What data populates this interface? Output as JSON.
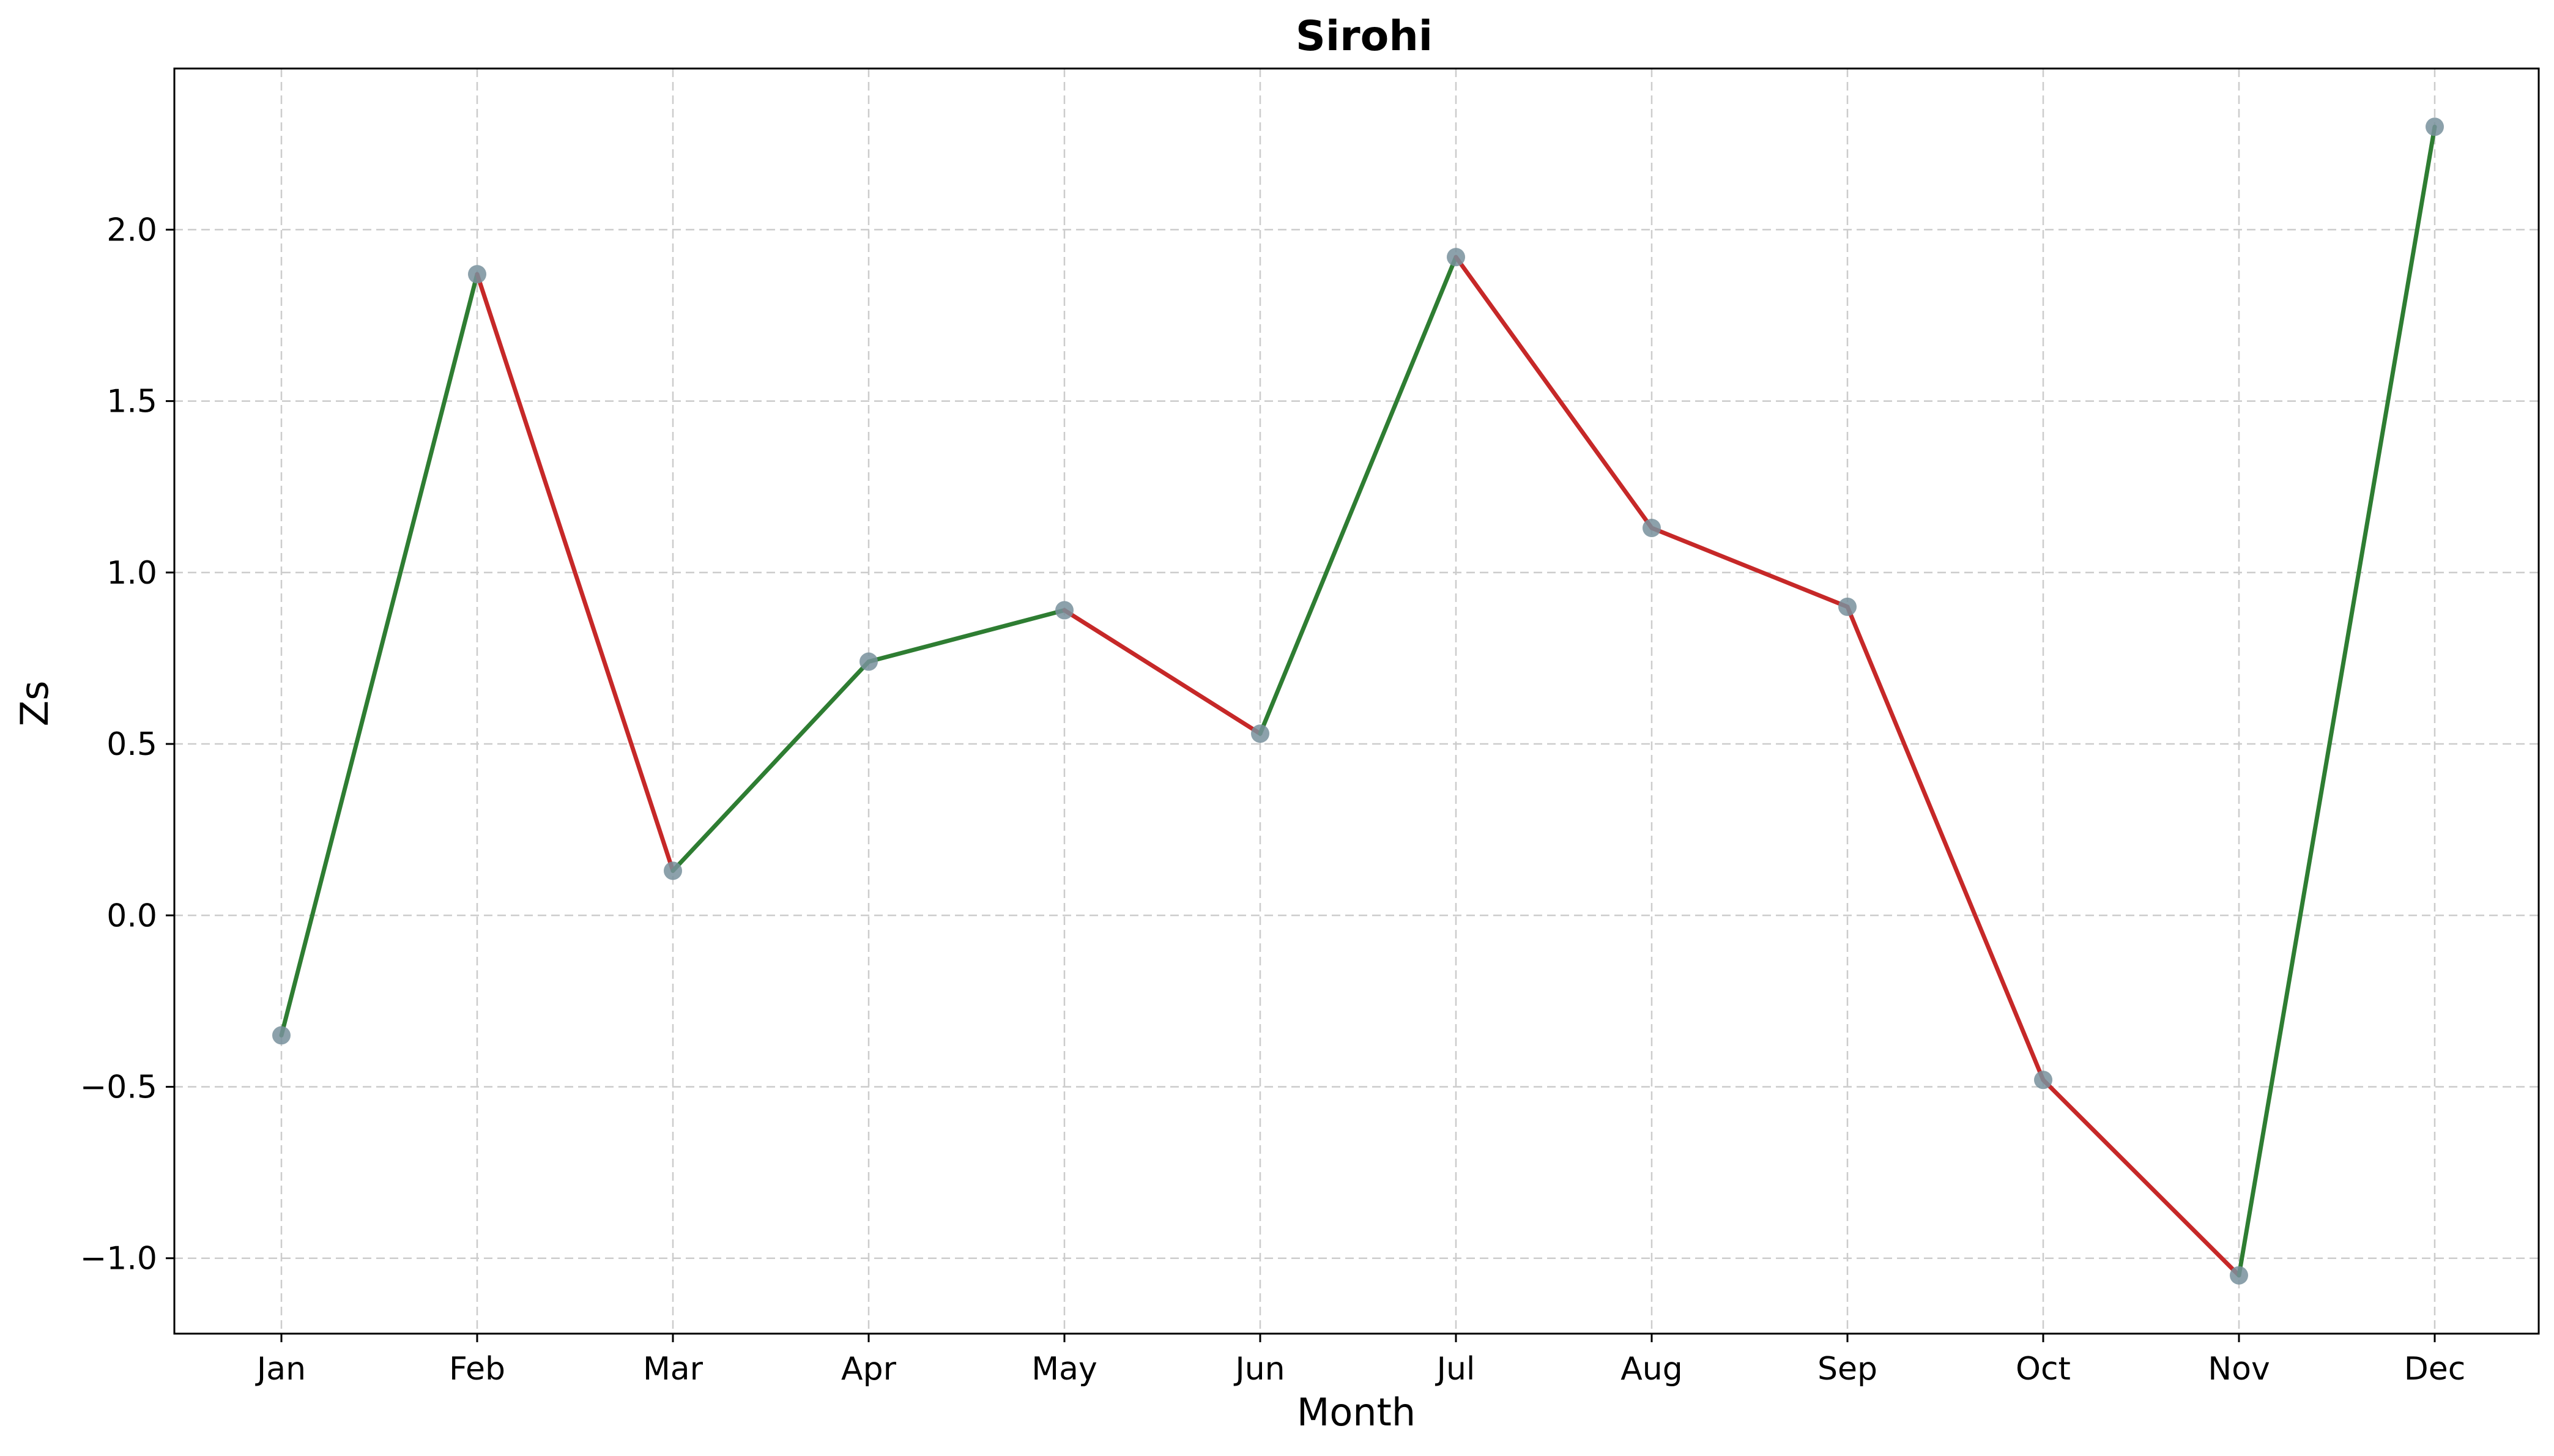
{
  "chart_data": {
    "type": "line",
    "title": "Sirohi",
    "xlabel": "Month",
    "ylabel": "Zs",
    "categories": [
      "Jan",
      "Feb",
      "Mar",
      "Apr",
      "May",
      "Jun",
      "Jul",
      "Aug",
      "Sep",
      "Oct",
      "Nov",
      "Dec"
    ],
    "values": [
      -0.35,
      1.87,
      0.13,
      0.74,
      0.89,
      0.53,
      1.92,
      1.13,
      0.9,
      -0.48,
      -1.05,
      2.3
    ],
    "ylim": [
      -1.22,
      2.47
    ],
    "yticks": [
      -1.0,
      -0.5,
      0.0,
      0.5,
      1.0,
      1.5,
      2.0
    ],
    "ytick_labels": [
      "−1.0",
      "−0.5",
      "0.0",
      "0.5",
      "1.0",
      "1.5",
      "2.0"
    ],
    "grid": true,
    "colors": {
      "rising": "#2e7d32",
      "falling": "#c62828",
      "marker": "#78909c",
      "grid": "#cccccc",
      "axis": "#000000"
    }
  }
}
